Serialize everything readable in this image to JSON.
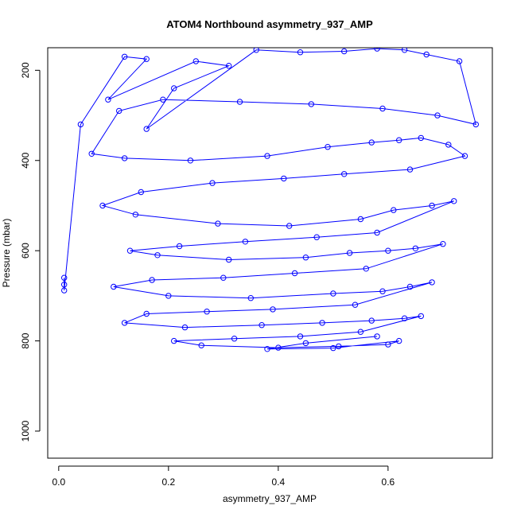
{
  "chart_data": {
    "type": "line",
    "title": "ATOM4 Northbound asymmetry_937_AMP",
    "xlabel": "asymmetry_937_AMP",
    "ylabel": "Pressure (mbar)",
    "xlim": [
      -0.02,
      0.79
    ],
    "ylim": [
      1060,
      150
    ],
    "y_reversed": true,
    "x_ticks": [
      {
        "value": 0.0,
        "label": "0.0"
      },
      {
        "value": 0.2,
        "label": "0.2"
      },
      {
        "value": 0.4,
        "label": "0.4"
      },
      {
        "value": 0.6,
        "label": "0.6"
      }
    ],
    "y_ticks": [
      {
        "value": 200,
        "label": "200"
      },
      {
        "value": 400,
        "label": "400"
      },
      {
        "value": 600,
        "label": "600"
      },
      {
        "value": 800,
        "label": "800"
      },
      {
        "value": 1000,
        "label": "1000"
      }
    ],
    "series_color": "#0000ff",
    "marker": "open-circle",
    "grid": false,
    "series": [
      {
        "x": [
          0.01,
          0.01,
          0.01,
          0.04,
          0.12,
          0.16,
          0.09,
          0.25,
          0.31,
          0.21,
          0.16,
          0.36,
          0.44,
          0.52,
          0.58,
          0.63,
          0.67,
          0.73,
          0.76,
          0.69,
          0.59,
          0.46,
          0.33,
          0.19,
          0.11,
          0.06,
          0.12,
          0.24,
          0.38,
          0.49,
          0.57,
          0.62,
          0.66,
          0.71,
          0.74,
          0.64,
          0.52,
          0.41,
          0.28,
          0.15,
          0.08,
          0.14,
          0.29,
          0.42,
          0.55,
          0.61,
          0.68,
          0.72,
          0.58,
          0.47,
          0.34,
          0.22,
          0.13,
          0.18,
          0.31,
          0.45,
          0.53,
          0.6,
          0.65,
          0.7,
          0.56,
          0.43,
          0.3,
          0.17,
          0.1,
          0.2,
          0.35,
          0.5,
          0.59,
          0.64,
          0.68,
          0.54,
          0.39,
          0.27,
          0.16,
          0.12,
          0.23,
          0.37,
          0.48,
          0.57,
          0.63,
          0.66,
          0.55,
          0.44,
          0.32,
          0.21,
          0.26,
          0.4,
          0.51,
          0.6,
          0.62,
          0.5,
          0.38,
          0.45,
          0.58
        ],
        "y": [
          660,
          675,
          688,
          320,
          170,
          175,
          265,
          180,
          190,
          240,
          330,
          155,
          160,
          158,
          152,
          155,
          165,
          180,
          320,
          300,
          285,
          275,
          270,
          265,
          290,
          385,
          395,
          400,
          390,
          370,
          360,
          355,
          350,
          365,
          390,
          420,
          430,
          440,
          450,
          470,
          500,
          520,
          540,
          545,
          530,
          510,
          500,
          490,
          560,
          570,
          580,
          590,
          600,
          610,
          620,
          615,
          605,
          600,
          595,
          585,
          640,
          650,
          660,
          665,
          680,
          700,
          705,
          695,
          690,
          680,
          670,
          720,
          730,
          735,
          740,
          760,
          770,
          765,
          760,
          755,
          750,
          745,
          780,
          790,
          795,
          800,
          810,
          815,
          812,
          808,
          800,
          816,
          818,
          805,
          790
        ]
      }
    ]
  }
}
